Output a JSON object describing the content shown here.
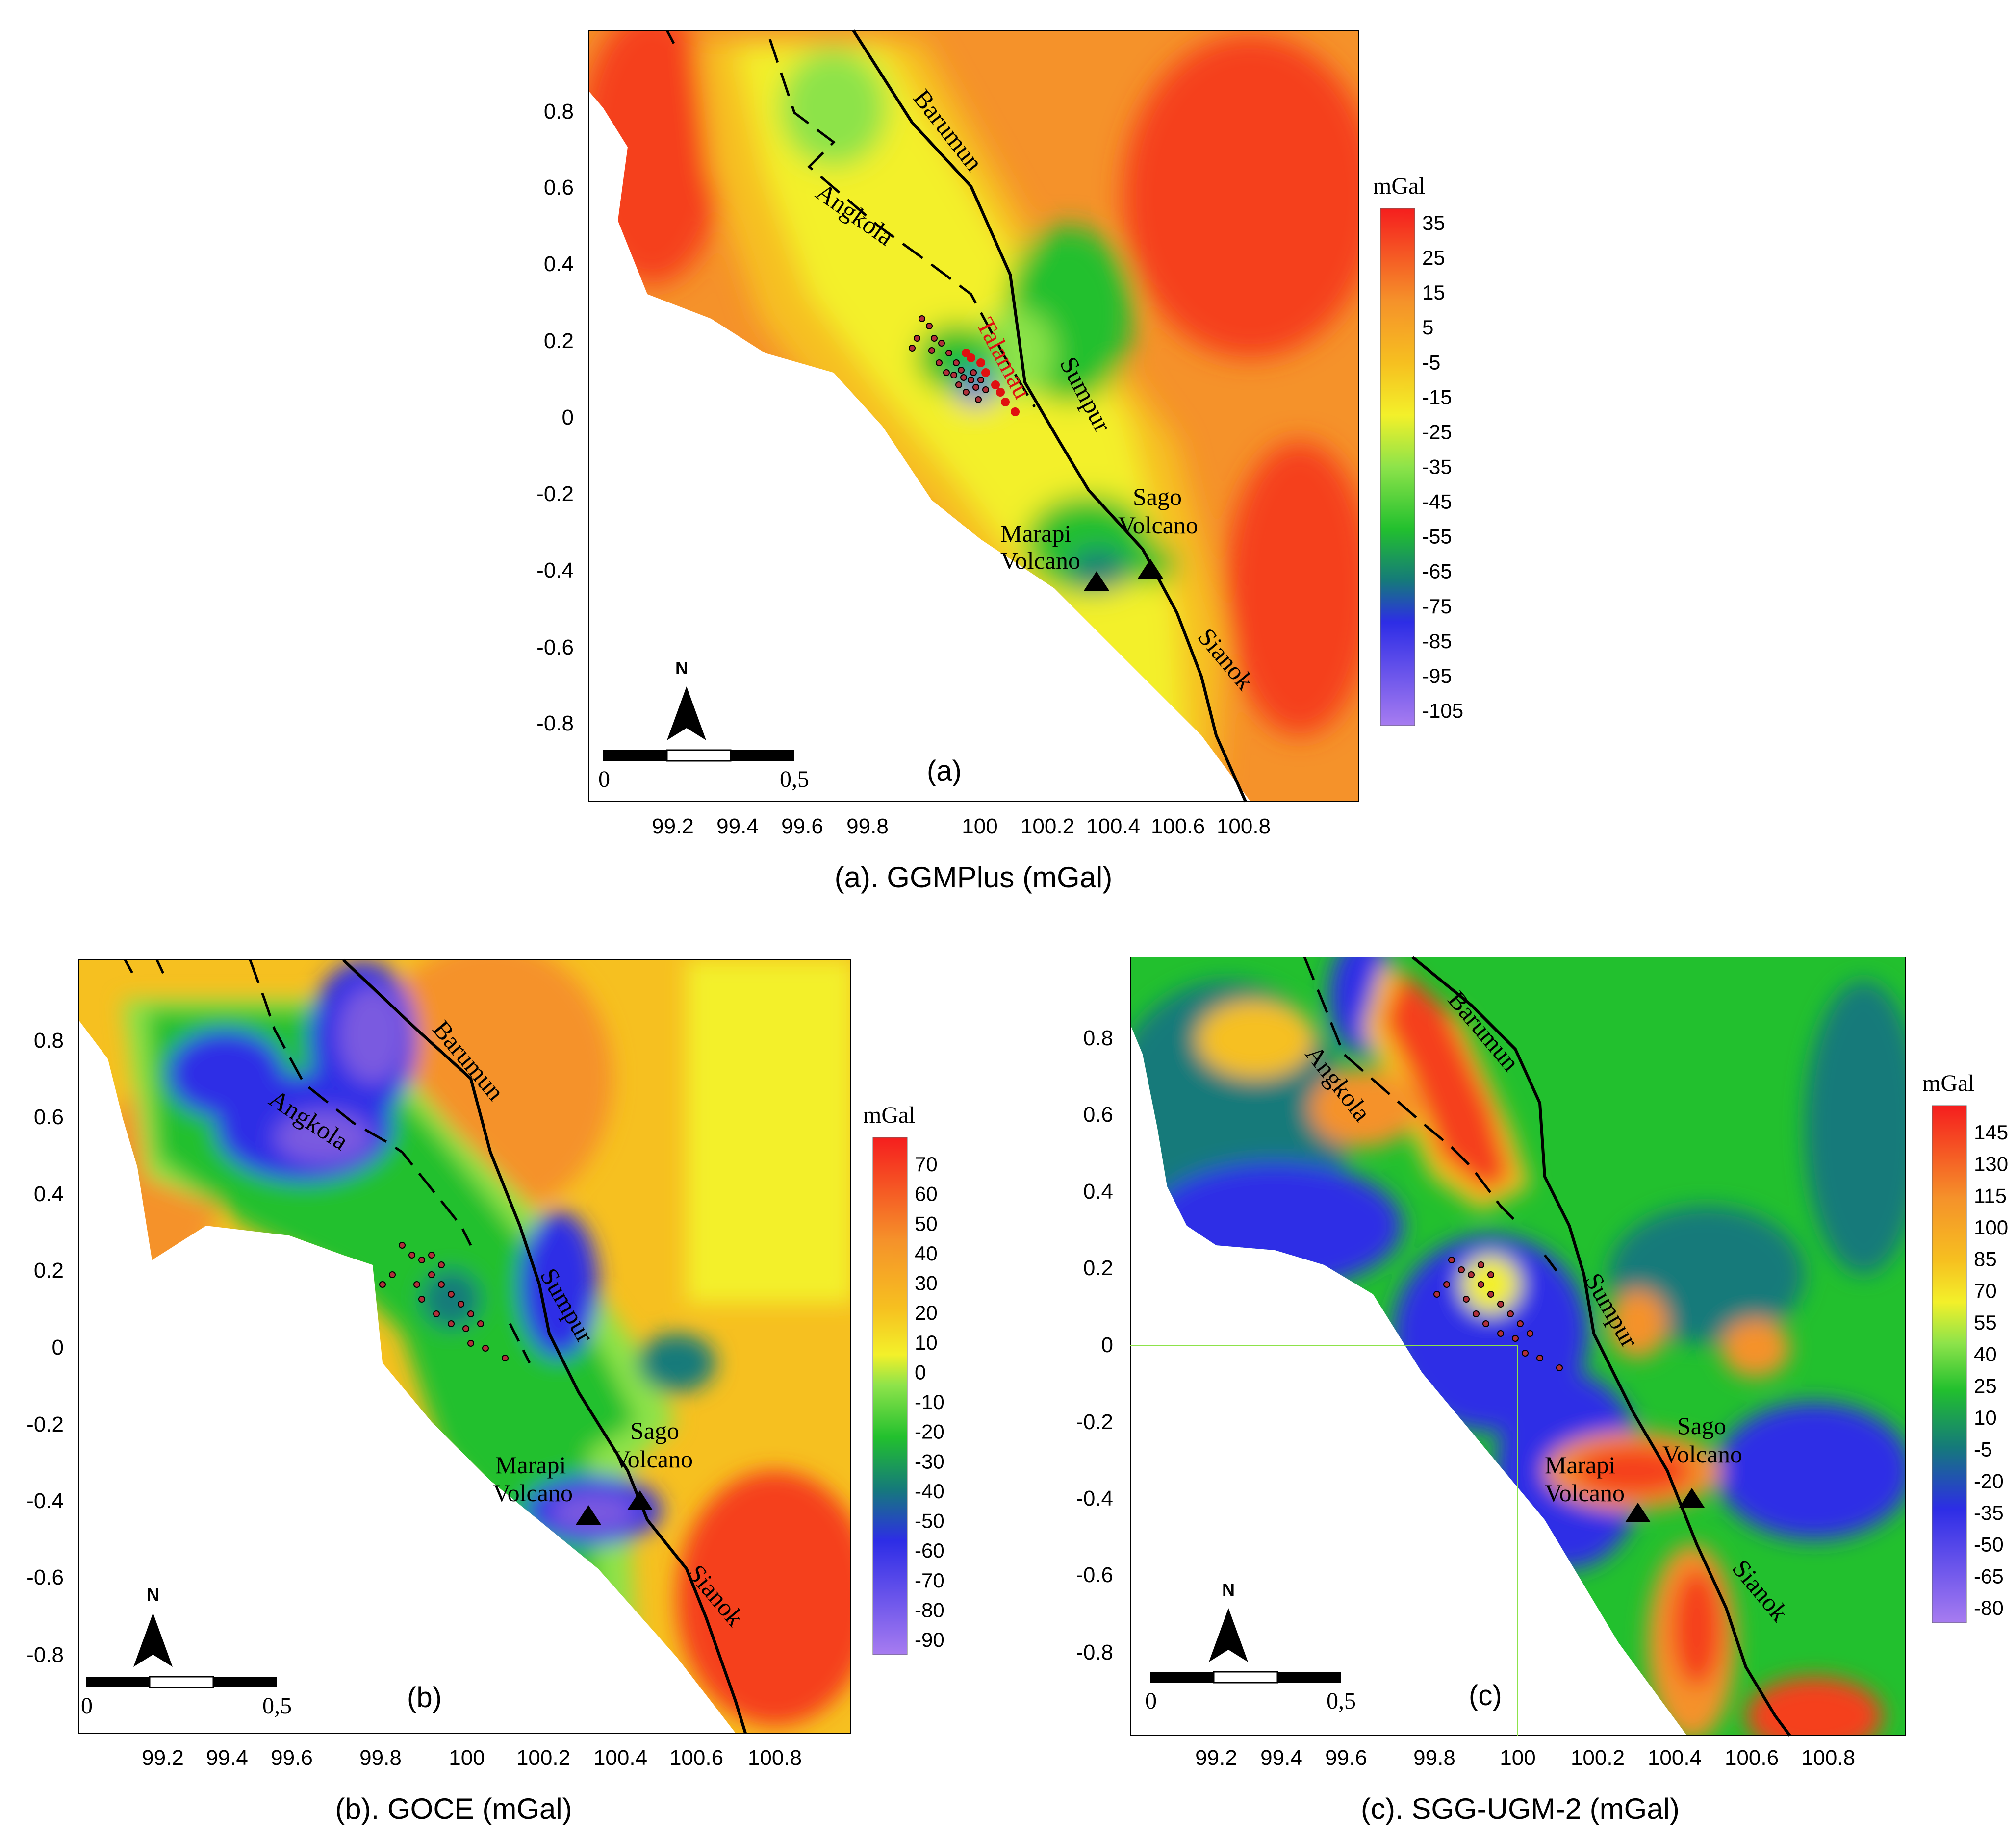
{
  "colors": {
    "purple": "#a77cf0",
    "violet": "#7a5ae0",
    "blue": "#2d2de6",
    "navy": "#1f46b8",
    "teal": "#157a7a",
    "green": "#22c02e",
    "lightgreen": "#8de34a",
    "yellow": "#f3f02a",
    "lightorange": "#f6c020",
    "orange": "#f5922a",
    "red": "#f5401e",
    "fault": "#000000",
    "well_fill": "#b0303a",
    "talamau": "#e01010"
  },
  "xticks": [
    "99.2",
    "99.4",
    "99.6",
    "99.8",
    "100",
    "100.2",
    "100.4",
    "100.6",
    "100.8"
  ],
  "yticks": [
    "0.8",
    "0.6",
    "0.4",
    "0.2",
    "0",
    "-0.2",
    "-0.4",
    "-0.6",
    "-0.8"
  ],
  "labels": {
    "barumun": "Barumun",
    "angkola": "Angkola",
    "sumpur": "Sumpur",
    "sianok": "Sianok",
    "talamau": "Talamau",
    "marapi_1": "Marapi",
    "marapi_2": "Volcano",
    "sago_1": "Sago",
    "sago_2": "Volcano",
    "north": "N",
    "scale_start": "0",
    "scale_end": "0,5",
    "unit": "mGal"
  },
  "panels": {
    "a": {
      "letter": "(a)",
      "caption": "(a). GGMPlus (mGal)",
      "colorbar_ticks": [
        "35",
        "25",
        "15",
        "5",
        "-5",
        "-15",
        "-25",
        "-35",
        "-45",
        "-55",
        "-65",
        "-75",
        "-85",
        "-95",
        "-105"
      ]
    },
    "b": {
      "letter": "(b)",
      "caption": "(b). GOCE (mGal)",
      "colorbar_ticks": [
        "70",
        "60",
        "50",
        "40",
        "30",
        "20",
        "10",
        "0",
        "-10",
        "-20",
        "-30",
        "-40",
        "-50",
        "-60",
        "-70",
        "-80",
        "-90"
      ]
    },
    "c": {
      "letter": "(c)",
      "caption": "(c). SGG-UGM-2 (mGal)",
      "colorbar_ticks": [
        "145",
        "130",
        "115",
        "100",
        "85",
        "70",
        "55",
        "40",
        "25",
        "10",
        "-5",
        "-20",
        "-35",
        "-50",
        "-65",
        "-80"
      ]
    }
  }
}
